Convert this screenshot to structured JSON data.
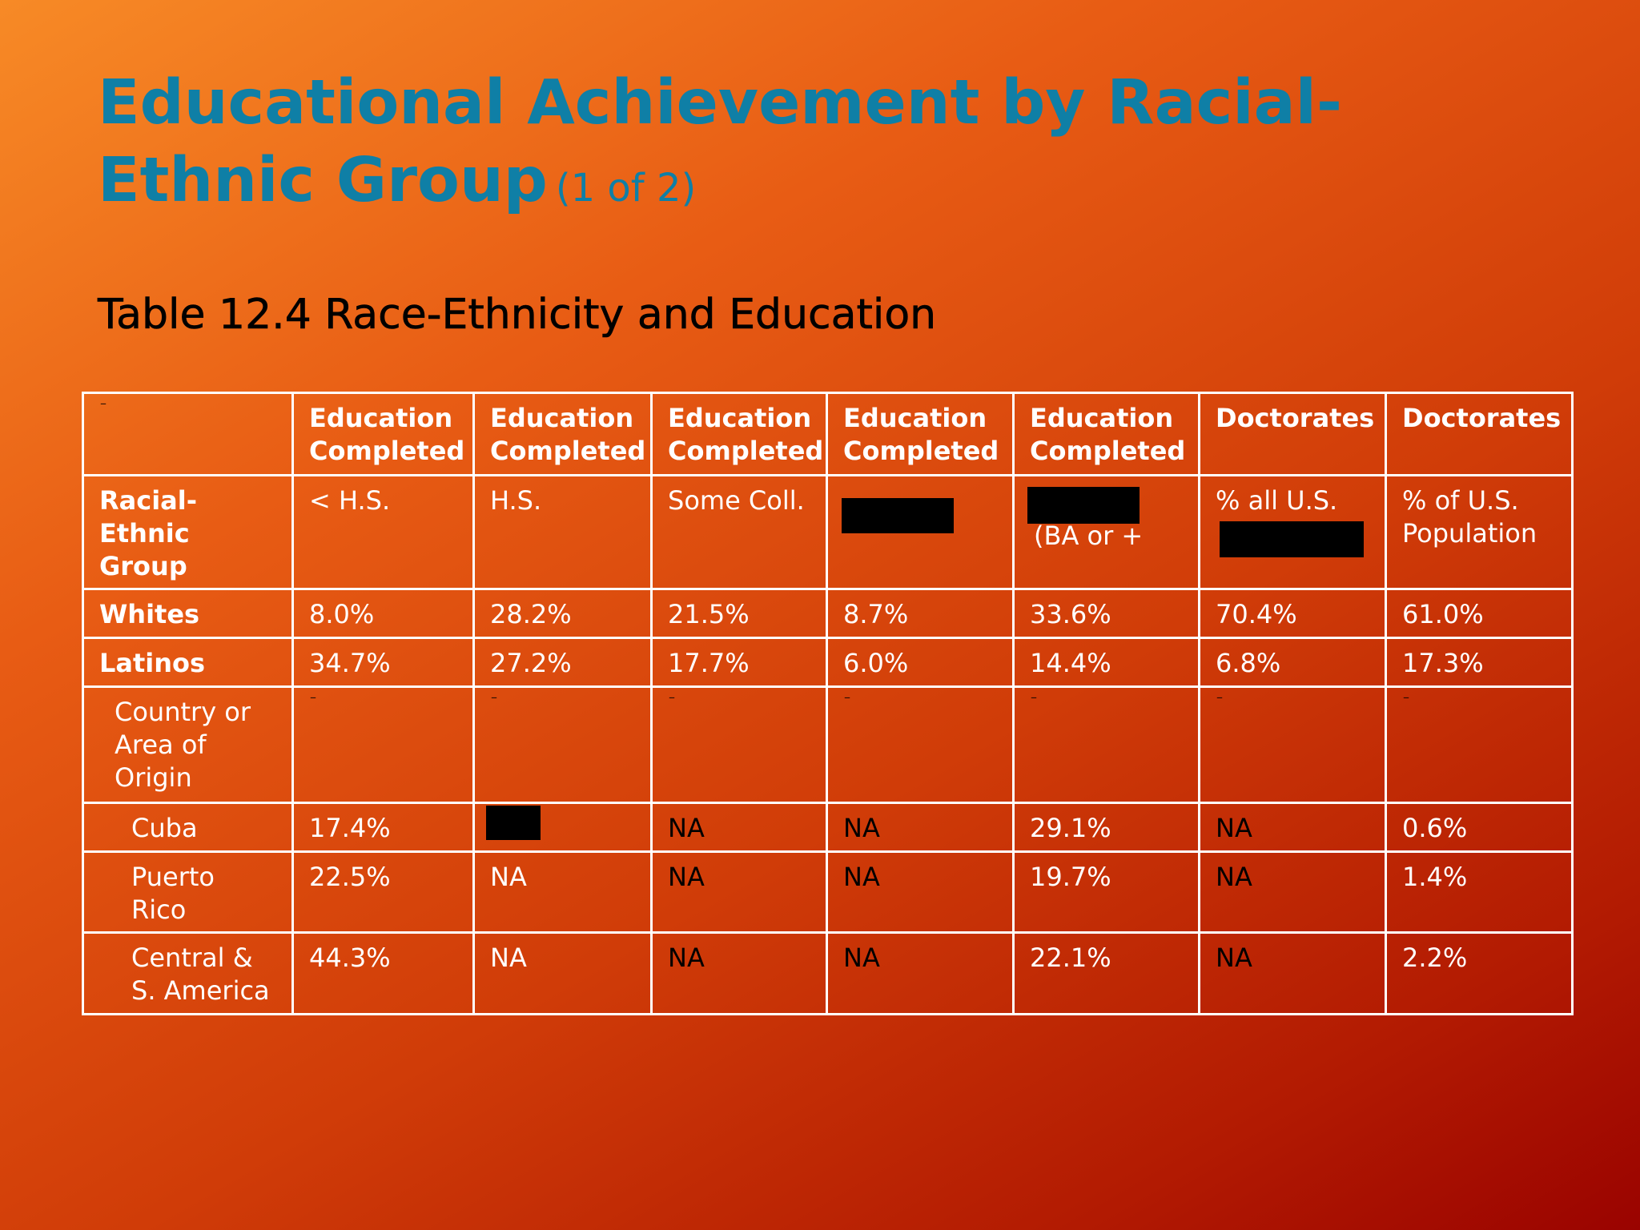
{
  "slide": {
    "title": "Educational Achievement by Racial-Ethnic Group",
    "title_suffix": "(1 of 2)",
    "table_caption": "Table 12.4 Race-Ethnicity and Education"
  },
  "table": {
    "header_row1": [
      "",
      "Education Completed",
      "Education Completed",
      "Education Completed",
      "Education Completed",
      "Education Completed",
      "Doctorates",
      "Doctorates"
    ],
    "header_row2": [
      "Racial-Ethnic Group",
      "< H.S.",
      "H.S.",
      "Some Coll.",
      "",
      "(BA or +",
      "% all U.S.",
      "% of U.S. Population"
    ],
    "rows": [
      {
        "group": "Whites",
        "values": [
          "8.0%",
          "28.2%",
          "21.5%",
          "8.7%",
          "33.6%",
          "70.4%",
          "61.0%"
        ]
      },
      {
        "group": "Latinos",
        "values": [
          "34.7%",
          "27.2%",
          "17.7%",
          "6.0%",
          "14.4%",
          "6.8%",
          "17.3%"
        ]
      },
      {
        "group": "Country or Area of Origin",
        "values": [
          "",
          "",
          "",
          "",
          "",
          "",
          ""
        ]
      },
      {
        "group": "Cuba",
        "values": [
          "17.4%",
          "",
          "NA",
          "NA",
          "29.1%",
          "NA",
          "0.6%"
        ]
      },
      {
        "group": "Puerto Rico",
        "values": [
          "22.5%",
          "NA",
          "NA",
          "NA",
          "19.7%",
          "NA",
          "1.4%"
        ]
      },
      {
        "group": "Central & S. America",
        "values": [
          "44.3%",
          "NA",
          "NA",
          "NA",
          "22.1%",
          "NA",
          "2.2%"
        ]
      }
    ]
  },
  "colors": {
    "title": "#0f7fa6",
    "grid": "#ffffff",
    "cell_text": "#ffffff",
    "na_text": "#000000",
    "redaction": "#000000"
  }
}
